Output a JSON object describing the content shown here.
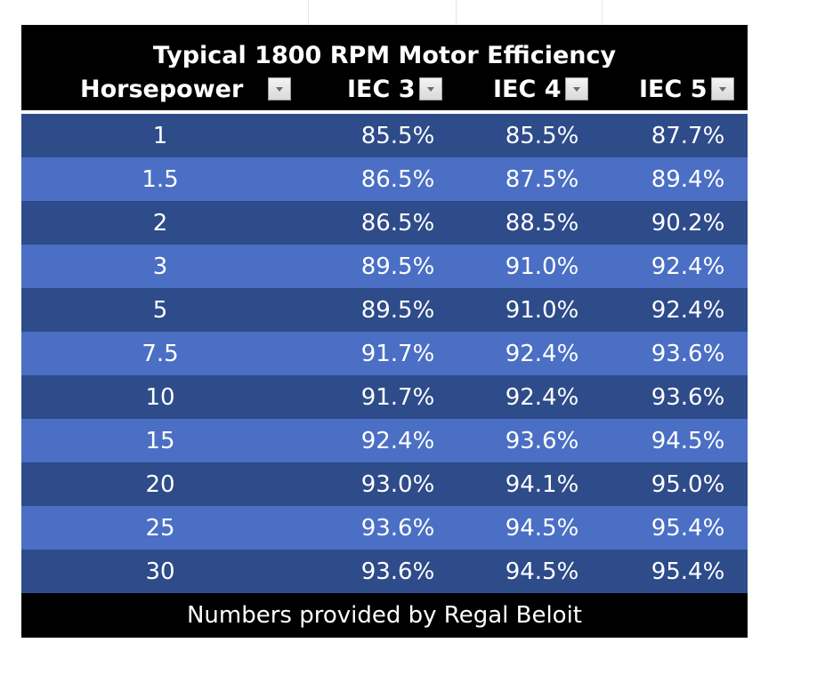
{
  "table": {
    "title": "Typical 1800 RPM Motor Efficiency",
    "headers": [
      "Horsepower",
      "IEC 3",
      "IEC 4",
      "IEC 5"
    ],
    "rows": [
      [
        "1",
        "85.5%",
        "85.5%",
        "87.7%"
      ],
      [
        "1.5",
        "86.5%",
        "87.5%",
        "89.4%"
      ],
      [
        "2",
        "86.5%",
        "88.5%",
        "90.2%"
      ],
      [
        "3",
        "89.5%",
        "91.0%",
        "92.4%"
      ],
      [
        "5",
        "89.5%",
        "91.0%",
        "92.4%"
      ],
      [
        "7.5",
        "91.7%",
        "92.4%",
        "93.6%"
      ],
      [
        "10",
        "91.7%",
        "92.4%",
        "93.6%"
      ],
      [
        "15",
        "92.4%",
        "93.6%",
        "94.5%"
      ],
      [
        "20",
        "93.0%",
        "94.1%",
        "95.0%"
      ],
      [
        "25",
        "93.6%",
        "94.5%",
        "95.4%"
      ],
      [
        "30",
        "93.6%",
        "94.5%",
        "95.4%"
      ]
    ],
    "footer": "Numbers provided by Regal Beloit"
  },
  "colors": {
    "header_bg": "#000000",
    "row_dark": "#2e4b8a",
    "row_light": "#4a6fc4",
    "text": "#ffffff"
  },
  "icons": {
    "filter": "filter-dropdown-icon"
  }
}
